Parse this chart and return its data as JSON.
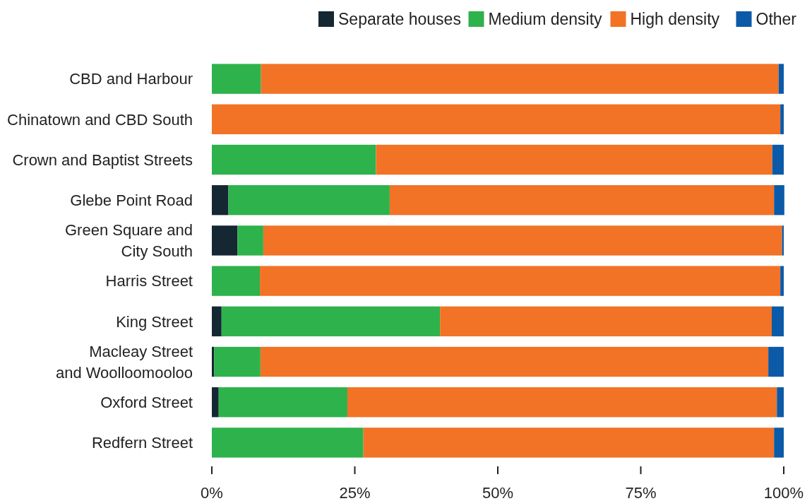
{
  "chart_data": {
    "type": "bar",
    "orientation": "horizontal",
    "stacked": true,
    "categories": [
      "CBD and Harbour",
      "Chinatown and CBD South",
      "Crown and Baptist Streets",
      "Glebe Point Road",
      "Green Square and City South",
      "Harris Street",
      "King Street",
      "Macleay Street and Woolloomooloo",
      "Oxford Street",
      "Redfern Street"
    ],
    "series": [
      {
        "name": "Separate houses",
        "color": "#152733",
        "values": [
          0,
          0,
          0,
          2.9,
          4.5,
          0,
          1.7,
          0.4,
          1.2,
          0
        ]
      },
      {
        "name": "Medium density",
        "color": "#2eb24c",
        "values": [
          8.6,
          0,
          28.7,
          28.2,
          4.5,
          8.4,
          38.2,
          8.1,
          22.5,
          26.5
        ]
      },
      {
        "name": "High density",
        "color": "#f27226",
        "values": [
          90.5,
          99.4,
          69.3,
          67.2,
          90.7,
          91.0,
          58.0,
          88.8,
          75.1,
          71.8
        ]
      },
      {
        "name": "Other",
        "color": "#0b5aa8",
        "values": [
          0.9,
          0.6,
          2.0,
          1.8,
          0.3,
          0.6,
          2.1,
          2.7,
          1.2,
          1.7
        ]
      }
    ],
    "xlim": [
      0,
      100
    ],
    "xticks": [
      {
        "value": 0,
        "label": "0%"
      },
      {
        "value": 25,
        "label": "25%"
      },
      {
        "value": 50,
        "label": "50%"
      },
      {
        "value": 75,
        "label": "75%"
      },
      {
        "value": 100,
        "label": "100%"
      }
    ],
    "legend": "top right"
  }
}
